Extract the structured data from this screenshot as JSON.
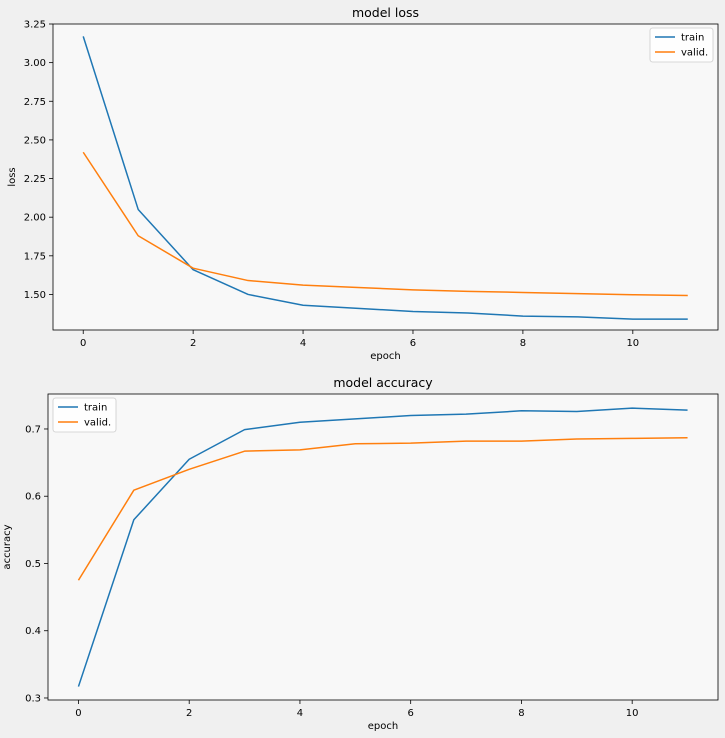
{
  "chart_data": [
    {
      "type": "line",
      "title": "model loss",
      "xlabel": "epoch",
      "ylabel": "loss",
      "x": [
        0,
        1,
        2,
        3,
        4,
        5,
        6,
        7,
        8,
        9,
        10,
        11
      ],
      "xlim": [
        -0.55,
        11.55
      ],
      "ylim": [
        1.27,
        3.25
      ],
      "xticks": [
        0,
        2,
        4,
        6,
        8,
        10
      ],
      "yticks": [
        1.5,
        1.75,
        2.0,
        2.25,
        2.5,
        2.75,
        3.0,
        3.25
      ],
      "ytick_labels": [
        "1.50",
        "1.75",
        "2.00",
        "2.25",
        "2.50",
        "2.75",
        "3.00",
        "3.25"
      ],
      "grid": false,
      "legend_position": "top-right",
      "series": [
        {
          "name": "train",
          "color": "#1f77b4",
          "values": [
            3.17,
            2.05,
            1.66,
            1.5,
            1.43,
            1.41,
            1.39,
            1.38,
            1.36,
            1.355,
            1.34,
            1.34
          ]
        },
        {
          "name": "valid.",
          "color": "#ff7f0e",
          "values": [
            2.42,
            1.88,
            1.67,
            1.59,
            1.56,
            1.545,
            1.53,
            1.52,
            1.513,
            1.505,
            1.498,
            1.493
          ]
        }
      ]
    },
    {
      "type": "line",
      "title": "model accuracy",
      "xlabel": "epoch",
      "ylabel": "accuracy",
      "x": [
        0,
        1,
        2,
        3,
        4,
        5,
        6,
        7,
        8,
        9,
        10,
        11
      ],
      "xlim": [
        -0.55,
        11.55
      ],
      "ylim": [
        0.297,
        0.752
      ],
      "xticks": [
        0,
        2,
        4,
        6,
        8,
        10
      ],
      "yticks": [
        0.3,
        0.4,
        0.5,
        0.6,
        0.7
      ],
      "ytick_labels": [
        "0.3",
        "0.4",
        "0.5",
        "0.6",
        "0.7"
      ],
      "grid": false,
      "legend_position": "top-left",
      "series": [
        {
          "name": "train",
          "color": "#1f77b4",
          "values": [
            0.317,
            0.565,
            0.655,
            0.699,
            0.71,
            0.715,
            0.72,
            0.722,
            0.727,
            0.726,
            0.731,
            0.728
          ]
        },
        {
          "name": "valid.",
          "color": "#ff7f0e",
          "values": [
            0.475,
            0.609,
            0.64,
            0.667,
            0.669,
            0.678,
            0.679,
            0.682,
            0.682,
            0.685,
            0.686,
            0.687
          ]
        }
      ]
    }
  ]
}
